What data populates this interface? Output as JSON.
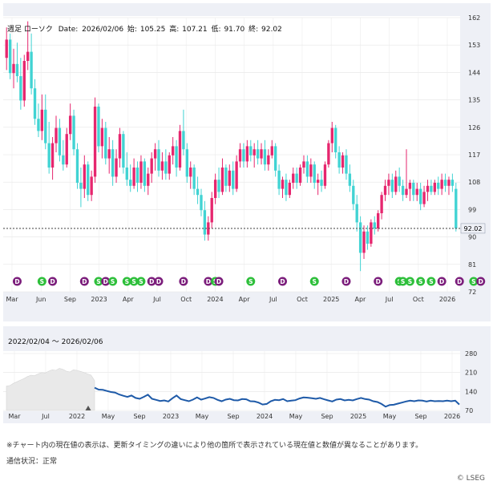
{
  "chart_data": [
    {
      "type": "candlestick",
      "header": {
        "title": "週足 ローソク",
        "date_label": "Date:",
        "date": "2026/02/06",
        "open_label": "始:",
        "open": "105.25",
        "high_label": "高:",
        "high": "107.21",
        "low_label": "低:",
        "low": "91.70",
        "close_label": "終:",
        "close": "92.02"
      },
      "current_price": 92.02,
      "current_price_label": "92.02",
      "ylim": [
        72,
        162
      ],
      "y_ticks": [
        162,
        153,
        144,
        135,
        126,
        117,
        108,
        99,
        90,
        81,
        72
      ],
      "x_tick_labels": [
        "Mar",
        "Jun",
        "Sep",
        "2023",
        "Apr",
        "Jul",
        "Oct",
        "2024",
        "Apr",
        "Jul",
        "Oct",
        "2025",
        "Apr",
        "Jul",
        "Oct",
        "2026"
      ],
      "ohlc": [
        [
          148,
          158,
          144,
          154
        ],
        [
          154,
          156,
          141,
          143
        ],
        [
          143,
          151,
          138,
          146
        ],
        [
          146,
          153,
          140,
          142
        ],
        [
          142,
          148,
          131,
          134
        ],
        [
          134,
          149,
          132,
          147
        ],
        [
          147,
          160,
          144,
          150
        ],
        [
          150,
          156,
          136,
          138
        ],
        [
          138,
          141,
          126,
          128
        ],
        [
          128,
          133,
          122,
          124
        ],
        [
          124,
          136,
          121,
          131
        ],
        [
          131,
          136,
          118,
          120
        ],
        [
          120,
          127,
          110,
          112
        ],
        [
          112,
          122,
          108,
          120
        ],
        [
          120,
          129,
          117,
          125
        ],
        [
          125,
          128,
          114,
          116
        ],
        [
          116,
          121,
          111,
          113
        ],
        [
          113,
          125,
          112,
          123
        ],
        [
          123,
          133,
          121,
          129
        ],
        [
          129,
          131,
          116,
          118
        ],
        [
          118,
          120,
          105,
          107
        ],
        [
          107,
          112,
          99,
          105
        ],
        [
          105,
          116,
          102,
          113
        ],
        [
          113,
          114,
          101,
          103
        ],
        [
          103,
          111,
          101,
          109
        ],
        [
          109,
          135,
          107,
          132
        ],
        [
          132,
          133,
          117,
          119
        ],
        [
          119,
          128,
          115,
          125
        ],
        [
          125,
          127,
          113,
          115
        ],
        [
          115,
          122,
          110,
          118
        ],
        [
          118,
          121,
          106,
          109
        ],
        [
          109,
          118,
          107,
          115
        ],
        [
          115,
          125,
          112,
          123
        ],
        [
          123,
          124,
          110,
          112
        ],
        [
          112,
          117,
          106,
          108
        ],
        [
          108,
          113,
          104,
          106
        ],
        [
          106,
          115,
          105,
          112
        ],
        [
          112,
          114,
          104,
          107
        ],
        [
          107,
          116,
          105,
          114
        ],
        [
          114,
          115,
          104,
          106
        ],
        [
          106,
          112,
          103,
          110
        ],
        [
          110,
          117,
          107,
          115
        ],
        [
          115,
          120,
          111,
          118
        ],
        [
          118,
          121,
          109,
          111
        ],
        [
          111,
          117,
          108,
          114
        ],
        [
          114,
          118,
          108,
          110
        ],
        [
          110,
          117,
          108,
          116
        ],
        [
          116,
          122,
          113,
          119
        ],
        [
          119,
          121,
          109,
          112
        ],
        [
          112,
          126,
          111,
          124
        ],
        [
          124,
          131,
          116,
          118
        ],
        [
          118,
          120,
          107,
          109
        ],
        [
          109,
          114,
          105,
          112
        ],
        [
          112,
          113,
          103,
          105
        ],
        [
          105,
          109,
          100,
          103
        ],
        [
          103,
          105,
          96,
          98
        ],
        [
          98,
          101,
          88,
          90
        ],
        [
          90,
          96,
          88,
          94
        ],
        [
          94,
          104,
          92,
          102
        ],
        [
          102,
          110,
          100,
          108
        ],
        [
          108,
          112,
          102,
          104
        ],
        [
          104,
          115,
          103,
          112
        ],
        [
          112,
          113,
          104,
          106
        ],
        [
          106,
          113,
          104,
          111
        ],
        [
          111,
          114,
          103,
          105
        ],
        [
          105,
          116,
          104,
          114
        ],
        [
          114,
          120,
          112,
          118
        ],
        [
          118,
          120,
          112,
          114
        ],
        [
          114,
          121,
          112,
          119
        ],
        [
          119,
          121,
          114,
          116
        ],
        [
          116,
          120,
          112,
          118
        ],
        [
          118,
          121,
          113,
          115
        ],
        [
          115,
          120,
          113,
          118
        ],
        [
          118,
          121,
          111,
          113
        ],
        [
          113,
          118,
          111,
          116
        ],
        [
          116,
          121,
          115,
          119
        ],
        [
          119,
          120,
          109,
          111
        ],
        [
          111,
          113,
          103,
          105
        ],
        [
          105,
          109,
          102,
          108
        ],
        [
          108,
          110,
          101,
          103
        ],
        [
          103,
          108,
          102,
          107
        ],
        [
          107,
          112,
          105,
          110
        ],
        [
          110,
          112,
          105,
          107
        ],
        [
          107,
          113,
          106,
          112
        ],
        [
          112,
          116,
          110,
          114
        ],
        [
          114,
          116,
          107,
          109
        ],
        [
          109,
          115,
          107,
          113
        ],
        [
          113,
          114,
          105,
          107
        ],
        [
          107,
          110,
          103,
          108
        ],
        [
          108,
          111,
          104,
          106
        ],
        [
          106,
          114,
          105,
          113
        ],
        [
          113,
          121,
          112,
          120
        ],
        [
          120,
          127,
          117,
          125
        ],
        [
          125,
          126,
          115,
          117
        ],
        [
          117,
          119,
          110,
          112
        ],
        [
          112,
          117,
          110,
          116
        ],
        [
          116,
          118,
          108,
          110
        ],
        [
          110,
          113,
          104,
          106
        ],
        [
          106,
          108,
          98,
          100
        ],
        [
          100,
          103,
          91,
          94
        ],
        [
          94,
          96,
          78,
          84
        ],
        [
          84,
          93,
          82,
          91
        ],
        [
          91,
          93,
          85,
          87
        ],
        [
          87,
          95,
          86,
          94
        ],
        [
          94,
          96,
          90,
          92
        ],
        [
          92,
          98,
          91,
          97
        ],
        [
          97,
          104,
          95,
          103
        ],
        [
          103,
          108,
          101,
          106
        ],
        [
          106,
          110,
          103,
          108
        ],
        [
          108,
          110,
          102,
          104
        ],
        [
          104,
          111,
          103,
          109
        ],
        [
          109,
          112,
          104,
          106
        ],
        [
          106,
          108,
          101,
          103
        ],
        [
          103,
          118,
          102,
          105
        ],
        [
          105,
          108,
          101,
          107
        ],
        [
          107,
          108,
          101,
          103
        ],
        [
          103,
          107,
          101,
          105
        ],
        [
          105,
          107,
          98,
          100
        ],
        [
          100,
          106,
          99,
          104
        ],
        [
          104,
          108,
          101,
          106
        ],
        [
          106,
          108,
          103,
          104
        ],
        [
          104,
          108,
          103,
          107
        ],
        [
          107,
          109,
          103,
          105
        ],
        [
          105,
          110,
          103,
          108
        ],
        [
          108,
          110,
          104,
          106
        ],
        [
          106,
          109,
          103,
          108
        ],
        [
          108,
          110,
          104,
          106
        ],
        [
          105,
          107,
          91,
          92
        ]
      ],
      "events": [
        {
          "label": "D",
          "week": 3
        },
        {
          "label": "S",
          "week": 10
        },
        {
          "label": "D",
          "week": 13
        },
        {
          "label": "D",
          "week": 22
        },
        {
          "label": "S",
          "week": 26
        },
        {
          "label": "D",
          "week": 28
        },
        {
          "label": "S",
          "week": 30
        },
        {
          "label": "S",
          "week": 34
        },
        {
          "label": "S",
          "week": 36
        },
        {
          "label": "S",
          "week": 38
        },
        {
          "label": "D",
          "week": 41
        },
        {
          "label": "D",
          "week": 43
        },
        {
          "label": "D",
          "week": 50
        },
        {
          "label": "D",
          "week": 57
        },
        {
          "label": "S",
          "week": 59
        },
        {
          "label": "D",
          "week": 60
        },
        {
          "label": "S",
          "week": 69
        },
        {
          "label": "D",
          "week": 78
        },
        {
          "label": "S",
          "week": 87
        },
        {
          "label": "D",
          "week": 96
        },
        {
          "label": "D",
          "week": 105
        },
        {
          "label": "S",
          "week": 111
        },
        {
          "label": "S",
          "week": 112
        },
        {
          "label": "S",
          "week": 114
        },
        {
          "label": "S",
          "week": 117
        },
        {
          "label": "S",
          "week": 120
        },
        {
          "label": "D",
          "week": 123
        },
        {
          "label": "D",
          "week": 128
        },
        {
          "label": "S",
          "week": 132
        },
        {
          "label": "D",
          "week": 134
        },
        {
          "label": "D",
          "week": 144
        },
        {
          "label": "S",
          "week": 147
        }
      ]
    },
    {
      "type": "line",
      "title": "2022/02/04 ～ 2026/02/06",
      "ylim": [
        70,
        280
      ],
      "y_ticks": [
        280,
        210,
        140,
        70
      ],
      "x_tick_labels": [
        "Mar",
        "Jul",
        "2022",
        "May",
        "Sep",
        "2023",
        "May",
        "Sep",
        "2024",
        "May",
        "Sep",
        "2025",
        "May",
        "Sep",
        "2026"
      ],
      "history_values": [
        160,
        162,
        170,
        176,
        182,
        188,
        195,
        200,
        198,
        205,
        210,
        208,
        215,
        220,
        218,
        225,
        222,
        215,
        212,
        220,
        218,
        214,
        210,
        205,
        200,
        180
      ],
      "values": [
        154,
        147,
        146,
        142,
        138,
        136,
        129,
        124,
        120,
        125,
        116,
        113,
        120,
        128,
        113,
        109,
        105,
        107,
        103,
        115,
        125,
        112,
        108,
        104,
        110,
        118,
        110,
        114,
        119,
        116,
        109,
        104,
        110,
        113,
        108,
        107,
        112,
        111,
        104,
        103,
        99,
        92,
        94,
        104,
        109,
        108,
        112,
        104,
        106,
        108,
        114,
        118,
        117,
        115,
        113,
        116,
        111,
        107,
        103,
        110,
        112,
        107,
        109,
        107,
        112,
        116,
        112,
        110,
        104,
        101,
        94,
        84,
        90,
        91,
        95,
        99,
        103,
        106,
        104,
        107,
        106,
        103,
        106,
        104,
        105,
        104,
        106,
        104,
        106,
        92
      ]
    }
  ],
  "footer": {
    "note": "※チャート内の現在値の表示は、更新タイミングの違いにより他の箇所で表示されている現在値と数値が異なることがあります。",
    "status": "通信状況：正常",
    "copyright": "© LSEG"
  },
  "colors": {
    "up": "#e6266e",
    "down": "#41d3d3",
    "dividend_marker": "#7b1d7b",
    "split_marker": "#2dbf3a",
    "line": "#1e5aa8",
    "history_fill": "#e9e9e9",
    "price_line": "#444444"
  }
}
